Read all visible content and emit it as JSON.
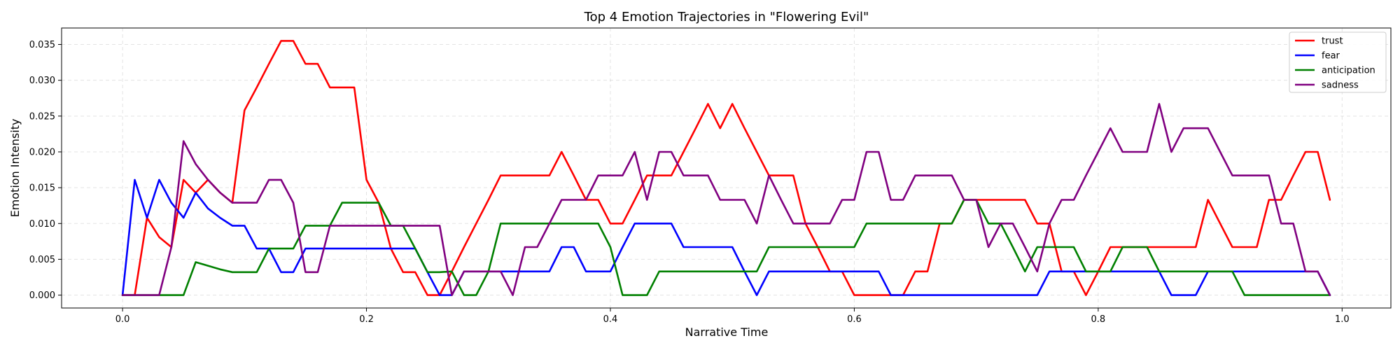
{
  "chart_data": {
    "type": "line",
    "title": "Top 4 Emotion Trajectories in \"Flowering Evil\"",
    "xlabel": "Narrative Time",
    "ylabel": "Emotion Intensity",
    "xlim": [
      -0.05,
      1.04
    ],
    "ylim": [
      -0.0018,
      0.0373
    ],
    "xticks": [
      0.0,
      0.2,
      0.4,
      0.6,
      0.8,
      1.0
    ],
    "xtick_labels": [
      "0.0",
      "0.2",
      "0.4",
      "0.6",
      "0.8",
      "1.0"
    ],
    "yticks": [
      0.0,
      0.005,
      0.01,
      0.015,
      0.02,
      0.025,
      0.03,
      0.035
    ],
    "ytick_labels": [
      "0.000",
      "0.005",
      "0.010",
      "0.015",
      "0.020",
      "0.025",
      "0.030",
      "0.035"
    ],
    "grid": true,
    "legend_position": "top-right",
    "x": [
      0.0,
      0.01,
      0.02,
      0.03,
      0.04,
      0.05,
      0.06,
      0.07,
      0.08,
      0.09,
      0.1,
      0.11,
      0.12,
      0.13,
      0.14,
      0.15,
      0.16,
      0.17,
      0.18,
      0.19,
      0.2,
      0.21,
      0.22,
      0.23,
      0.24,
      0.25,
      0.26,
      0.27,
      0.28,
      0.29,
      0.3,
      0.31,
      0.32,
      0.33,
      0.34,
      0.35,
      0.36,
      0.37,
      0.38,
      0.39,
      0.4,
      0.41,
      0.42,
      0.43,
      0.44,
      0.45,
      0.46,
      0.47,
      0.48,
      0.49,
      0.5,
      0.51,
      0.52,
      0.53,
      0.54,
      0.55,
      0.56,
      0.57,
      0.58,
      0.59,
      0.6,
      0.61,
      0.62,
      0.63,
      0.64,
      0.65,
      0.66,
      0.67,
      0.68,
      0.69,
      0.7,
      0.71,
      0.72,
      0.73,
      0.74,
      0.75,
      0.76,
      0.77,
      0.78,
      0.79,
      0.8,
      0.81,
      0.82,
      0.83,
      0.84,
      0.85,
      0.86,
      0.87,
      0.88,
      0.89,
      0.9,
      0.91,
      0.92,
      0.93,
      0.94,
      0.95,
      0.96,
      0.97,
      0.98,
      0.99
    ],
    "series": [
      {
        "name": "trust",
        "color": "#ff0000",
        "values": [
          0.0,
          0.0,
          0.0108,
          0.0081,
          0.0067,
          0.0161,
          0.0143,
          0.0161,
          0.0143,
          0.0129,
          0.0258,
          0.029,
          0.0323,
          0.0355,
          0.0355,
          0.0323,
          0.0323,
          0.029,
          0.029,
          0.029,
          0.0161,
          0.0129,
          0.0065,
          0.0032,
          0.0032,
          0.0,
          0.0,
          0.0033,
          0.0067,
          0.01,
          0.0133,
          0.0167,
          0.0167,
          0.0167,
          0.0167,
          0.0167,
          0.02,
          0.0167,
          0.0133,
          0.0133,
          0.01,
          0.01,
          0.0133,
          0.0167,
          0.0167,
          0.0167,
          0.02,
          0.0233,
          0.0267,
          0.0233,
          0.0267,
          0.0233,
          0.02,
          0.0167,
          0.0167,
          0.0167,
          0.01,
          0.0067,
          0.0033,
          0.0033,
          0.0,
          0.0,
          0.0,
          0.0,
          0.0,
          0.0033,
          0.0033,
          0.01,
          0.01,
          0.0133,
          0.0133,
          0.0133,
          0.0133,
          0.0133,
          0.0133,
          0.01,
          0.01,
          0.0033,
          0.0033,
          0.0,
          0.0033,
          0.0067,
          0.0067,
          0.0067,
          0.0067,
          0.0067,
          0.0067,
          0.0067,
          0.0067,
          0.0133,
          0.01,
          0.0067,
          0.0067,
          0.0067,
          0.0133,
          0.0133,
          0.0167,
          0.02,
          0.02,
          0.0133
        ]
      },
      {
        "name": "fear",
        "color": "#0000ff",
        "values": [
          0.0,
          0.0161,
          0.0108,
          0.0161,
          0.0129,
          0.0108,
          0.0143,
          0.0121,
          0.0108,
          0.0097,
          0.0097,
          0.0065,
          0.0065,
          0.0032,
          0.0032,
          0.0065,
          0.0065,
          0.0065,
          0.0065,
          0.0065,
          0.0065,
          0.0065,
          0.0065,
          0.0065,
          0.0065,
          0.0032,
          0.0,
          0.0,
          0.0033,
          0.0033,
          0.0033,
          0.0033,
          0.0033,
          0.0033,
          0.0033,
          0.0033,
          0.0067,
          0.0067,
          0.0033,
          0.0033,
          0.0033,
          0.0067,
          0.01,
          0.01,
          0.01,
          0.01,
          0.0067,
          0.0067,
          0.0067,
          0.0067,
          0.0067,
          0.0033,
          0.0,
          0.0033,
          0.0033,
          0.0033,
          0.0033,
          0.0033,
          0.0033,
          0.0033,
          0.0033,
          0.0033,
          0.0033,
          0.0,
          0.0,
          0.0,
          0.0,
          0.0,
          0.0,
          0.0,
          0.0,
          0.0,
          0.0,
          0.0,
          0.0,
          0.0,
          0.0033,
          0.0033,
          0.0033,
          0.0033,
          0.0033,
          0.0033,
          0.0033,
          0.0033,
          0.0033,
          0.0033,
          0.0,
          0.0,
          0.0,
          0.0033,
          0.0033,
          0.0033,
          0.0033,
          0.0033,
          0.0033,
          0.0033,
          0.0033,
          0.0033,
          0.0033,
          0.0
        ]
      },
      {
        "name": "anticipation",
        "color": "#008000",
        "values": [
          0.0,
          0.0,
          0.0,
          0.0,
          0.0,
          0.0,
          0.0046,
          0.0041,
          0.0036,
          0.0032,
          0.0032,
          0.0032,
          0.0065,
          0.0065,
          0.0065,
          0.0097,
          0.0097,
          0.0097,
          0.0129,
          0.0129,
          0.0129,
          0.0129,
          0.0097,
          0.0097,
          0.0065,
          0.0032,
          0.0032,
          0.0033,
          0.0,
          0.0,
          0.0033,
          0.01,
          0.01,
          0.01,
          0.01,
          0.01,
          0.01,
          0.01,
          0.01,
          0.01,
          0.0067,
          0.0,
          0.0,
          0.0,
          0.0033,
          0.0033,
          0.0033,
          0.0033,
          0.0033,
          0.0033,
          0.0033,
          0.0033,
          0.0033,
          0.0067,
          0.0067,
          0.0067,
          0.0067,
          0.0067,
          0.0067,
          0.0067,
          0.0067,
          0.01,
          0.01,
          0.01,
          0.01,
          0.01,
          0.01,
          0.01,
          0.01,
          0.0133,
          0.0133,
          0.01,
          0.01,
          0.0067,
          0.0033,
          0.0067,
          0.0067,
          0.0067,
          0.0067,
          0.0033,
          0.0033,
          0.0033,
          0.0067,
          0.0067,
          0.0067,
          0.0033,
          0.0033,
          0.0033,
          0.0033,
          0.0033,
          0.0033,
          0.0033,
          0.0,
          0.0,
          0.0,
          0.0,
          0.0,
          0.0,
          0.0,
          0.0
        ]
      },
      {
        "name": "sadness",
        "color": "#800080",
        "values": [
          0.0,
          0.0,
          0.0,
          0.0,
          0.0067,
          0.0215,
          0.0183,
          0.0161,
          0.0143,
          0.0129,
          0.0129,
          0.0129,
          0.0161,
          0.0161,
          0.0129,
          0.0032,
          0.0032,
          0.0097,
          0.0097,
          0.0097,
          0.0097,
          0.0097,
          0.0097,
          0.0097,
          0.0097,
          0.0097,
          0.0097,
          0.0,
          0.0033,
          0.0033,
          0.0033,
          0.0033,
          0.0,
          0.0067,
          0.0067,
          0.01,
          0.0133,
          0.0133,
          0.0133,
          0.0167,
          0.0167,
          0.0167,
          0.02,
          0.0133,
          0.02,
          0.02,
          0.0167,
          0.0167,
          0.0167,
          0.0133,
          0.0133,
          0.0133,
          0.01,
          0.0167,
          0.0133,
          0.01,
          0.01,
          0.01,
          0.01,
          0.0133,
          0.0133,
          0.02,
          0.02,
          0.0133,
          0.0133,
          0.0167,
          0.0167,
          0.0167,
          0.0167,
          0.0133,
          0.0133,
          0.0067,
          0.01,
          0.01,
          0.0067,
          0.0033,
          0.01,
          0.0133,
          0.0133,
          0.0167,
          0.02,
          0.0233,
          0.02,
          0.02,
          0.02,
          0.0267,
          0.02,
          0.0233,
          0.0233,
          0.0233,
          0.02,
          0.0167,
          0.0167,
          0.0167,
          0.0167,
          0.01,
          0.01,
          0.0033,
          0.0033,
          0.0
        ]
      }
    ]
  }
}
